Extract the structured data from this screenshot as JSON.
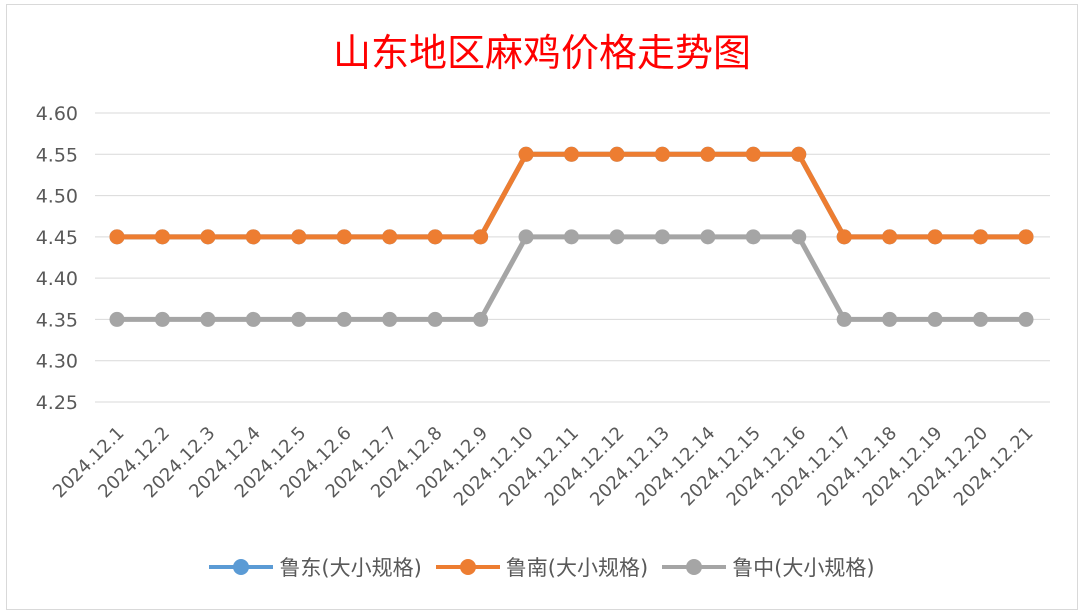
{
  "chart_data": {
    "type": "line",
    "title": "山东地区麻鸡价格走势图",
    "title_color": "#ff0000",
    "categories": [
      "2024.12.1",
      "2024.12.2",
      "2024.12.3",
      "2024.12.4",
      "2024.12.5",
      "2024.12.6",
      "2024.12.7",
      "2024.12.8",
      "2024.12.9",
      "2024.12.10",
      "2024.12.11",
      "2024.12.12",
      "2024.12.13",
      "2024.12.14",
      "2024.12.15",
      "2024.12.16",
      "2024.12.17",
      "2024.12.18",
      "2024.12.19",
      "2024.12.20",
      "2024.12.21"
    ],
    "y_ticks": [
      "4.25",
      "4.30",
      "4.35",
      "4.40",
      "4.45",
      "4.50",
      "4.55",
      "4.60"
    ],
    "ylim": [
      4.25,
      4.6
    ],
    "grid": true,
    "legend_position": "bottom",
    "series": [
      {
        "name": "鲁东(大小规格)",
        "color": "#5b9bd5",
        "values": [
          4.45,
          4.45,
          4.45,
          4.45,
          4.45,
          4.45,
          4.45,
          4.45,
          4.45,
          4.55,
          4.55,
          4.55,
          4.55,
          4.55,
          4.55,
          4.55,
          4.45,
          4.45,
          4.45,
          4.45,
          4.45
        ]
      },
      {
        "name": "鲁南(大小规格)",
        "color": "#ed7d31",
        "values": [
          4.45,
          4.45,
          4.45,
          4.45,
          4.45,
          4.45,
          4.45,
          4.45,
          4.45,
          4.55,
          4.55,
          4.55,
          4.55,
          4.55,
          4.55,
          4.55,
          4.45,
          4.45,
          4.45,
          4.45,
          4.45
        ]
      },
      {
        "name": "鲁中(大小规格)",
        "color": "#a5a5a5",
        "values": [
          4.35,
          4.35,
          4.35,
          4.35,
          4.35,
          4.35,
          4.35,
          4.35,
          4.35,
          4.45,
          4.45,
          4.45,
          4.45,
          4.45,
          4.45,
          4.45,
          4.35,
          4.35,
          4.35,
          4.35,
          4.35
        ]
      }
    ]
  }
}
